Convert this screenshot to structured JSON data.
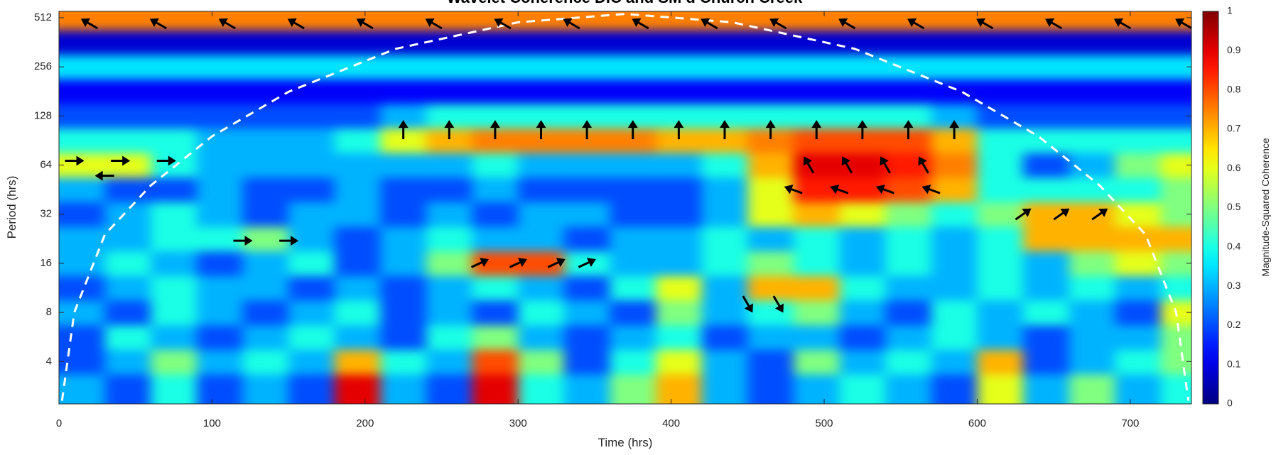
{
  "chart_data": {
    "type": "heatmap",
    "title": "Wavelet Coherence DIC and SM d Church Creek",
    "x_label": "Time (hrs)",
    "y_label": "Period (hrs)",
    "colorbar_label": "Magnitude-Squared Coherence",
    "colormap": "jet",
    "yscale": "log",
    "xlim": [
      0,
      740
    ],
    "ylim": [
      2.2,
      560
    ],
    "xticks": [
      0,
      100,
      200,
      300,
      400,
      500,
      600,
      700
    ],
    "yticks": [
      4,
      8,
      16,
      32,
      64,
      128,
      256,
      512
    ],
    "clim": [
      0,
      1
    ],
    "cticks": [
      0,
      0.1,
      0.2,
      0.3,
      0.4,
      0.5,
      0.6,
      0.7,
      0.8,
      0.9,
      1
    ],
    "x": [
      15,
      45,
      75,
      105,
      135,
      165,
      195,
      225,
      255,
      285,
      315,
      345,
      375,
      405,
      435,
      465,
      495,
      525,
      555,
      585,
      615,
      645,
      675,
      705,
      735
    ],
    "periods": [
      2.8,
      4,
      5.6,
      8,
      11.3,
      16,
      22.6,
      32,
      45.3,
      64,
      90.5,
      128,
      181,
      256,
      362,
      512
    ],
    "z": [
      [
        0.3,
        0.2,
        0.4,
        0.2,
        0.3,
        0.2,
        0.9,
        0.3,
        0.2,
        0.9,
        0.4,
        0.3,
        0.5,
        0.7,
        0.3,
        0.2,
        0.3,
        0.4,
        0.3,
        0.2,
        0.6,
        0.3,
        0.5,
        0.3,
        0.4
      ],
      [
        0.2,
        0.3,
        0.5,
        0.3,
        0.4,
        0.3,
        0.7,
        0.4,
        0.3,
        0.8,
        0.5,
        0.2,
        0.4,
        0.6,
        0.3,
        0.2,
        0.5,
        0.3,
        0.4,
        0.3,
        0.7,
        0.2,
        0.3,
        0.4,
        0.5
      ],
      [
        0.2,
        0.4,
        0.3,
        0.2,
        0.3,
        0.4,
        0.3,
        0.2,
        0.4,
        0.5,
        0.3,
        0.2,
        0.3,
        0.4,
        0.2,
        0.3,
        0.3,
        0.2,
        0.3,
        0.4,
        0.3,
        0.2,
        0.3,
        0.3,
        0.5
      ],
      [
        0.3,
        0.2,
        0.4,
        0.3,
        0.2,
        0.3,
        0.4,
        0.2,
        0.3,
        0.2,
        0.4,
        0.3,
        0.2,
        0.5,
        0.3,
        0.4,
        0.5,
        0.3,
        0.2,
        0.4,
        0.3,
        0.4,
        0.3,
        0.2,
        0.6
      ],
      [
        0.2,
        0.3,
        0.4,
        0.3,
        0.3,
        0.2,
        0.3,
        0.2,
        0.3,
        0.4,
        0.3,
        0.2,
        0.4,
        0.6,
        0.3,
        0.7,
        0.7,
        0.4,
        0.3,
        0.3,
        0.4,
        0.3,
        0.4,
        0.3,
        0.4
      ],
      [
        0.3,
        0.4,
        0.3,
        0.2,
        0.3,
        0.4,
        0.2,
        0.3,
        0.5,
        0.8,
        0.8,
        0.4,
        0.3,
        0.3,
        0.4,
        0.5,
        0.4,
        0.3,
        0.4,
        0.3,
        0.4,
        0.3,
        0.5,
        0.6,
        0.5
      ],
      [
        0.3,
        0.3,
        0.4,
        0.4,
        0.5,
        0.3,
        0.2,
        0.3,
        0.4,
        0.3,
        0.3,
        0.2,
        0.3,
        0.3,
        0.4,
        0.3,
        0.4,
        0.3,
        0.4,
        0.3,
        0.4,
        0.7,
        0.7,
        0.7,
        0.7
      ],
      [
        0.2,
        0.3,
        0.4,
        0.3,
        0.2,
        0.3,
        0.3,
        0.2,
        0.3,
        0.2,
        0.3,
        0.3,
        0.2,
        0.2,
        0.3,
        0.6,
        0.7,
        0.6,
        0.5,
        0.4,
        0.5,
        0.7,
        0.7,
        0.6,
        0.5
      ],
      [
        0.3,
        0.2,
        0.2,
        0.3,
        0.2,
        0.2,
        0.3,
        0.2,
        0.2,
        0.3,
        0.2,
        0.2,
        0.2,
        0.2,
        0.3,
        0.6,
        0.85,
        0.85,
        0.8,
        0.7,
        0.4,
        0.4,
        0.4,
        0.4,
        0.5
      ],
      [
        0.6,
        0.6,
        0.4,
        0.3,
        0.3,
        0.3,
        0.3,
        0.3,
        0.3,
        0.4,
        0.3,
        0.3,
        0.3,
        0.3,
        0.4,
        0.7,
        0.9,
        0.9,
        0.85,
        0.75,
        0.4,
        0.2,
        0.3,
        0.5,
        0.6
      ],
      [
        0.4,
        0.4,
        0.4,
        0.3,
        0.3,
        0.3,
        0.4,
        0.6,
        0.7,
        0.75,
        0.75,
        0.75,
        0.75,
        0.7,
        0.7,
        0.75,
        0.8,
        0.8,
        0.8,
        0.7,
        0.4,
        0.4,
        0.4,
        0.4,
        0.4
      ],
      [
        0.2,
        0.2,
        0.2,
        0.2,
        0.2,
        0.2,
        0.2,
        0.3,
        0.4,
        0.4,
        0.4,
        0.4,
        0.4,
        0.4,
        0.4,
        0.4,
        0.4,
        0.4,
        0.4,
        0.3,
        0.2,
        0.2,
        0.2,
        0.2,
        0.2
      ],
      [
        0.12,
        0.12,
        0.12,
        0.12,
        0.12,
        0.12,
        0.12,
        0.12,
        0.12,
        0.12,
        0.12,
        0.12,
        0.12,
        0.12,
        0.12,
        0.12,
        0.12,
        0.12,
        0.12,
        0.12,
        0.12,
        0.12,
        0.12,
        0.12,
        0.12
      ],
      [
        0.35,
        0.35,
        0.35,
        0.35,
        0.35,
        0.35,
        0.35,
        0.35,
        0.35,
        0.35,
        0.35,
        0.35,
        0.35,
        0.35,
        0.35,
        0.35,
        0.35,
        0.35,
        0.35,
        0.35,
        0.35,
        0.35,
        0.35,
        0.35,
        0.35
      ],
      [
        0.08,
        0.08,
        0.08,
        0.08,
        0.08,
        0.08,
        0.08,
        0.08,
        0.08,
        0.08,
        0.08,
        0.08,
        0.08,
        0.08,
        0.08,
        0.08,
        0.08,
        0.08,
        0.08,
        0.08,
        0.08,
        0.08,
        0.08,
        0.08,
        0.08
      ],
      [
        0.75,
        0.75,
        0.75,
        0.75,
        0.75,
        0.75,
        0.75,
        0.75,
        0.75,
        0.75,
        0.75,
        0.75,
        0.75,
        0.75,
        0.75,
        0.75,
        0.75,
        0.75,
        0.75,
        0.75,
        0.75,
        0.75,
        0.75,
        0.75,
        0.75
      ]
    ],
    "coi": {
      "x": [
        2,
        10,
        30,
        60,
        100,
        150,
        220,
        300,
        370,
        440,
        520,
        590,
        640,
        680,
        710,
        730,
        738
      ],
      "period": [
        2.3,
        8,
        24,
        48,
        96,
        180,
        330,
        480,
        540,
        480,
        330,
        180,
        96,
        48,
        24,
        8,
        2.3
      ]
    },
    "arrows": [
      {
        "x": 20,
        "period": 470,
        "angle": 150
      },
      {
        "x": 65,
        "period": 470,
        "angle": 150
      },
      {
        "x": 110,
        "period": 470,
        "angle": 150
      },
      {
        "x": 155,
        "period": 470,
        "angle": 150
      },
      {
        "x": 200,
        "period": 470,
        "angle": 150
      },
      {
        "x": 245,
        "period": 470,
        "angle": 150
      },
      {
        "x": 290,
        "period": 470,
        "angle": 150
      },
      {
        "x": 335,
        "period": 470,
        "angle": 150
      },
      {
        "x": 380,
        "period": 470,
        "angle": 150
      },
      {
        "x": 425,
        "period": 470,
        "angle": 150
      },
      {
        "x": 470,
        "period": 470,
        "angle": 150
      },
      {
        "x": 515,
        "period": 470,
        "angle": 150
      },
      {
        "x": 560,
        "period": 470,
        "angle": 150
      },
      {
        "x": 605,
        "period": 470,
        "angle": 150
      },
      {
        "x": 650,
        "period": 470,
        "angle": 150
      },
      {
        "x": 695,
        "period": 470,
        "angle": 150
      },
      {
        "x": 735,
        "period": 470,
        "angle": 150
      },
      {
        "x": 225,
        "period": 105,
        "angle": 90
      },
      {
        "x": 255,
        "period": 105,
        "angle": 90
      },
      {
        "x": 285,
        "period": 105,
        "angle": 90
      },
      {
        "x": 315,
        "period": 105,
        "angle": 90
      },
      {
        "x": 345,
        "period": 105,
        "angle": 90
      },
      {
        "x": 375,
        "period": 105,
        "angle": 90
      },
      {
        "x": 405,
        "period": 105,
        "angle": 90
      },
      {
        "x": 435,
        "period": 105,
        "angle": 90
      },
      {
        "x": 465,
        "period": 105,
        "angle": 90
      },
      {
        "x": 495,
        "period": 105,
        "angle": 90
      },
      {
        "x": 525,
        "period": 105,
        "angle": 90
      },
      {
        "x": 555,
        "period": 105,
        "angle": 90
      },
      {
        "x": 585,
        "period": 105,
        "angle": 90
      },
      {
        "x": 490,
        "period": 64,
        "angle": 120
      },
      {
        "x": 515,
        "period": 64,
        "angle": 120
      },
      {
        "x": 540,
        "period": 64,
        "angle": 120
      },
      {
        "x": 565,
        "period": 64,
        "angle": 120
      },
      {
        "x": 480,
        "period": 45,
        "angle": 160
      },
      {
        "x": 510,
        "period": 45,
        "angle": 160
      },
      {
        "x": 540,
        "period": 45,
        "angle": 160
      },
      {
        "x": 570,
        "period": 45,
        "angle": 160
      },
      {
        "x": 630,
        "period": 32,
        "angle": 35
      },
      {
        "x": 655,
        "period": 32,
        "angle": 35
      },
      {
        "x": 680,
        "period": 32,
        "angle": 35
      },
      {
        "x": 275,
        "period": 16,
        "angle": 25
      },
      {
        "x": 300,
        "period": 16,
        "angle": 25
      },
      {
        "x": 325,
        "period": 16,
        "angle": 25
      },
      {
        "x": 345,
        "period": 16,
        "angle": 25
      },
      {
        "x": 10,
        "period": 68,
        "angle": 0
      },
      {
        "x": 40,
        "period": 68,
        "angle": 0
      },
      {
        "x": 70,
        "period": 68,
        "angle": 0
      },
      {
        "x": 30,
        "period": 55,
        "angle": 180
      },
      {
        "x": 120,
        "period": 22,
        "angle": 0
      },
      {
        "x": 150,
        "period": 22,
        "angle": 0
      },
      {
        "x": 450,
        "period": 9,
        "angle": -60
      },
      {
        "x": 470,
        "period": 9,
        "angle": -60
      }
    ]
  }
}
